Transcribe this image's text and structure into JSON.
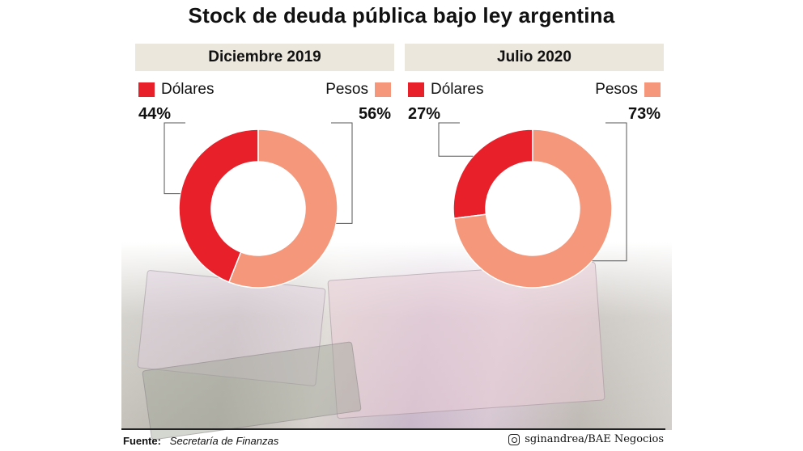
{
  "title": "Stock de deuda pública bajo ley argentina",
  "colors": {
    "dolares": "#e8202a",
    "pesos": "#f4977a",
    "header_bg": "#ebe7dd"
  },
  "chart_data": [
    {
      "type": "pie",
      "title": "Diciembre 2019",
      "categories": [
        "Dólares",
        "Pesos"
      ],
      "values": [
        44,
        56
      ],
      "value_labels": [
        "44%",
        "56%"
      ]
    },
    {
      "type": "pie",
      "title": "Julio 2020",
      "categories": [
        "Dólares",
        "Pesos"
      ],
      "values": [
        27,
        73
      ],
      "value_labels": [
        "27%",
        "73%"
      ]
    }
  ],
  "footer": {
    "source_label": "Fuente:",
    "source_value": "Secretaría de Finanzas",
    "credit": "sginandrea/BAE Negocios",
    "credit_icon": "instagram-icon"
  }
}
